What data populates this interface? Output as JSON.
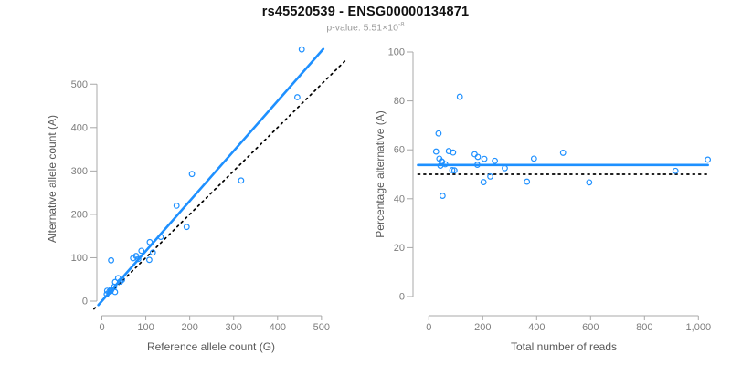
{
  "header": {
    "title": "rs45520539 - ENSG00000134871",
    "p_value_label": "p-value: ",
    "p_value_base": "5.51×10",
    "p_value_exponent": "-8"
  },
  "colors": {
    "accent_blue": "#1E90FF",
    "identity_black": "#000000",
    "axis_line": "#a8a8a8",
    "tick_label": "#7d7d7d",
    "axis_title": "#595959",
    "title": "#111111",
    "subtitle": "#9c9c9c",
    "background": "#ffffff"
  },
  "chart_data": [
    {
      "name": "allele-counts",
      "type": "scatter",
      "xlabel": "Reference allele count (G)",
      "ylabel": "Alternative allele count (A)",
      "xlim": [
        -20,
        560
      ],
      "ylim": [
        -20,
        595
      ],
      "grid": false,
      "legend": "none",
      "xticks": [
        0,
        100,
        200,
        300,
        400,
        500
      ],
      "xtick_labels": [
        "0",
        "100",
        "200",
        "300",
        "400",
        "500"
      ],
      "yticks": [
        0,
        100,
        200,
        300,
        400,
        500
      ],
      "ytick_labels": [
        "0",
        "100",
        "200",
        "300",
        "400",
        "500"
      ],
      "points": [
        [
          11,
          16
        ],
        [
          12,
          24
        ],
        [
          17,
          22
        ],
        [
          20,
          23
        ],
        [
          21,
          26
        ],
        [
          22,
          27
        ],
        [
          30,
          21
        ],
        [
          28,
          33
        ],
        [
          30,
          44
        ],
        [
          42,
          45
        ],
        [
          37,
          53
        ],
        [
          46,
          49
        ],
        [
          21,
          94
        ],
        [
          71,
          99
        ],
        [
          83,
          97
        ],
        [
          78,
          104
        ],
        [
          90,
          116
        ],
        [
          108,
          95
        ],
        [
          116,
          112
        ],
        [
          109,
          136
        ],
        [
          134,
          148
        ],
        [
          193,
          171
        ],
        [
          170,
          220
        ],
        [
          205,
          293
        ],
        [
          317,
          278
        ],
        [
          445,
          470
        ],
        [
          455,
          580
        ]
      ],
      "lines": [
        {
          "kind": "fit",
          "color": "#1E90FF",
          "width": 2.6,
          "dash": "",
          "x1": -8,
          "y1": -9,
          "x2": 504,
          "y2": 581
        },
        {
          "kind": "identity",
          "color": "#000000",
          "width": 1.7,
          "dash": "2 4.4",
          "x1": -18,
          "y1": -18,
          "x2": 557,
          "y2": 557
        }
      ]
    },
    {
      "name": "percentage-vs-reads",
      "type": "scatter",
      "xlabel": "Total number of reads",
      "ylabel": "Percentage alternative (A)",
      "xlim": [
        -45,
        1060
      ],
      "ylim": [
        0,
        100
      ],
      "grid": false,
      "legend": "none",
      "xticks": [
        0,
        200,
        400,
        600,
        800,
        1000
      ],
      "xtick_labels": [
        "0",
        "200",
        "400",
        "600",
        "800",
        "1,000"
      ],
      "yticks": [
        0,
        20,
        40,
        60,
        80,
        100
      ],
      "ytick_labels": [
        "0",
        "20",
        "40",
        "60",
        "80",
        "100"
      ],
      "points": [
        [
          27,
          59.3
        ],
        [
          36,
          66.7
        ],
        [
          39,
          56.4
        ],
        [
          43,
          53.5
        ],
        [
          47,
          55.3
        ],
        [
          49,
          55.1
        ],
        [
          51,
          41.2
        ],
        [
          61,
          54.1
        ],
        [
          74,
          59.5
        ],
        [
          87,
          51.7
        ],
        [
          90,
          58.9
        ],
        [
          95,
          51.6
        ],
        [
          115,
          81.7
        ],
        [
          170,
          58.2
        ],
        [
          180,
          53.9
        ],
        [
          182,
          57.1
        ],
        [
          206,
          56.3
        ],
        [
          203,
          46.8
        ],
        [
          228,
          49.1
        ],
        [
          245,
          55.5
        ],
        [
          282,
          52.5
        ],
        [
          364,
          47.0
        ],
        [
          390,
          56.4
        ],
        [
          498,
          58.8
        ],
        [
          595,
          46.7
        ],
        [
          915,
          51.4
        ],
        [
          1035,
          56.0
        ]
      ],
      "lines": [
        {
          "kind": "fit",
          "color": "#1E90FF",
          "width": 2.6,
          "dash": "",
          "x1": -40,
          "y1": 53.8,
          "x2": 1035,
          "y2": 53.8
        },
        {
          "kind": "reference",
          "color": "#000000",
          "width": 1.7,
          "dash": "2 4.4",
          "x1": -40,
          "y1": 50,
          "x2": 1035,
          "y2": 50
        }
      ]
    }
  ]
}
